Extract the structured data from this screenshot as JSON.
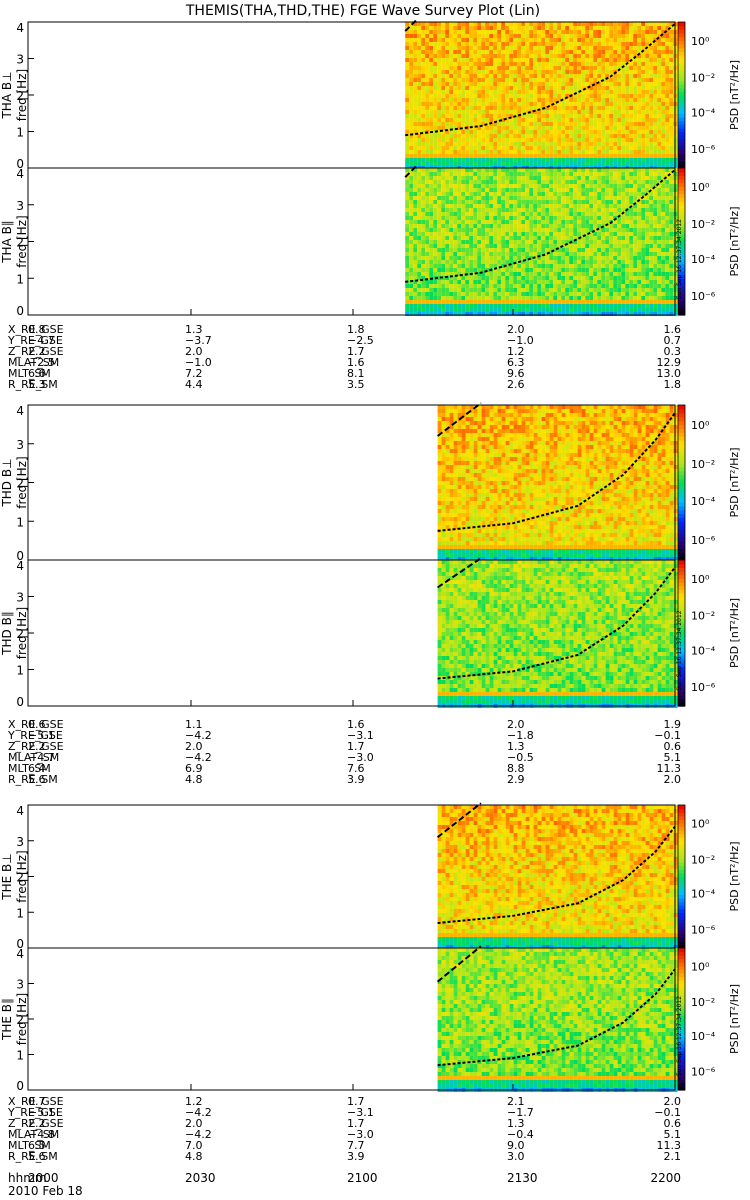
{
  "title": "THEMIS(THA,THD,THE) FGE Wave Survey Plot (Lin)",
  "colorbar_label": "PSD [nT²/Hz]",
  "colorbar_ticks": [
    "10⁰",
    "10⁻²",
    "10⁻⁴",
    "10⁻⁶"
  ],
  "timestamp_stamp": "Sun Sep 16 12:37:34 2012",
  "x_axis_row_label": "hhmm",
  "date_label": "2010 Feb 18",
  "chart_data": {
    "type": "heatmap",
    "x_label": "hhmm",
    "x_ticks": [
      "2000",
      "2030",
      "2100",
      "2130",
      "2200"
    ],
    "colorbar": {
      "label": "PSD [nT²/Hz]",
      "scale": "log",
      "range": [
        1e-07,
        10
      ],
      "ticks": [
        "10⁰",
        "10⁻²",
        "10⁻⁴",
        "10⁻⁶"
      ]
    },
    "panels": [
      {
        "probe": "THA",
        "component": "B⊥",
        "ylabel": "THA B⊥",
        "yunit": "freq [Hz]",
        "ylim": [
          0,
          4
        ],
        "yticks": [
          "0",
          "1",
          "2",
          "3",
          "4"
        ],
        "data_start_frac": 0.583,
        "gyro_curve": [
          [
            0.583,
            0.9
          ],
          [
            0.7,
            1.15
          ],
          [
            0.8,
            1.65
          ],
          [
            0.9,
            2.5
          ],
          [
            0.95,
            3.2
          ],
          [
            1.0,
            3.95
          ]
        ],
        "upper_curve": [
          [
            0.583,
            3.75
          ],
          [
            0.6,
            4.05
          ]
        ]
      },
      {
        "probe": "THA",
        "component": "B∥",
        "ylabel": "THA B∥",
        "yunit": "freq [Hz]",
        "ylim": [
          0,
          4
        ],
        "yticks": [
          "0",
          "1",
          "2",
          "3",
          "4"
        ],
        "data_start_frac": 0.583,
        "gyro_curve": [
          [
            0.583,
            0.9
          ],
          [
            0.7,
            1.15
          ],
          [
            0.8,
            1.65
          ],
          [
            0.9,
            2.5
          ],
          [
            0.95,
            3.2
          ],
          [
            1.0,
            3.95
          ]
        ],
        "upper_curve": [
          [
            0.583,
            3.75
          ],
          [
            0.6,
            4.05
          ]
        ]
      },
      {
        "probe": "THD",
        "component": "B⊥",
        "ylabel": "THD B⊥",
        "yunit": "freq [Hz]",
        "ylim": [
          0,
          4
        ],
        "yticks": [
          "0",
          "1",
          "2",
          "3",
          "4"
        ],
        "data_start_frac": 0.633,
        "gyro_curve": [
          [
            0.633,
            0.75
          ],
          [
            0.75,
            0.95
          ],
          [
            0.85,
            1.4
          ],
          [
            0.92,
            2.2
          ],
          [
            0.97,
            3.1
          ],
          [
            1.0,
            3.8
          ]
        ],
        "upper_curve": [
          [
            0.633,
            3.2
          ],
          [
            0.7,
            4.05
          ]
        ]
      },
      {
        "probe": "THD",
        "component": "B∥",
        "ylabel": "THD B∥",
        "yunit": "freq [Hz]",
        "ylim": [
          0,
          4
        ],
        "yticks": [
          "0",
          "1",
          "2",
          "3",
          "4"
        ],
        "data_start_frac": 0.633,
        "gyro_curve": [
          [
            0.633,
            0.75
          ],
          [
            0.75,
            0.95
          ],
          [
            0.85,
            1.4
          ],
          [
            0.92,
            2.2
          ],
          [
            0.97,
            3.1
          ],
          [
            1.0,
            3.8
          ]
        ],
        "upper_curve": [
          [
            0.633,
            3.25
          ],
          [
            0.7,
            4.05
          ]
        ]
      },
      {
        "probe": "THE",
        "component": "B⊥",
        "ylabel": "THE B⊥",
        "yunit": "freq [Hz]",
        "ylim": [
          0,
          4
        ],
        "yticks": [
          "0",
          "1",
          "2",
          "3",
          "4"
        ],
        "data_start_frac": 0.633,
        "gyro_curve": [
          [
            0.633,
            0.7
          ],
          [
            0.75,
            0.9
          ],
          [
            0.85,
            1.25
          ],
          [
            0.92,
            1.9
          ],
          [
            0.97,
            2.7
          ],
          [
            1.0,
            3.4
          ]
        ],
        "upper_curve": [
          [
            0.633,
            3.1
          ],
          [
            0.7,
            4.05
          ]
        ]
      },
      {
        "probe": "THE",
        "component": "B∥",
        "ylabel": "THE B∥",
        "yunit": "freq [Hz]",
        "ylim": [
          0,
          4
        ],
        "yticks": [
          "0",
          "1",
          "2",
          "3",
          "4"
        ],
        "data_start_frac": 0.633,
        "gyro_curve": [
          [
            0.633,
            0.7
          ],
          [
            0.75,
            0.9
          ],
          [
            0.85,
            1.25
          ],
          [
            0.92,
            1.9
          ],
          [
            0.97,
            2.7
          ],
          [
            1.0,
            3.4
          ]
        ],
        "upper_curve": [
          [
            0.633,
            3.05
          ],
          [
            0.7,
            4.05
          ]
        ]
      }
    ],
    "ephemeris": [
      {
        "probe": "THA",
        "rows": [
          {
            "label": "X_RE_GSE",
            "values": [
              "0.8",
              "1.3",
              "1.8",
              "2.0",
              "1.6"
            ]
          },
          {
            "label": "Y_RE_GSE",
            "values": [
              "−4.7",
              "−3.7",
              "−2.5",
              "−1.0",
              "0.7"
            ]
          },
          {
            "label": "Z_RE_GSE",
            "values": [
              "2.2",
              "2.0",
              "1.7",
              "1.2",
              "0.3"
            ]
          },
          {
            "label": "MLAT_SM",
            "values": [
              "−2.5",
              "−1.0",
              "1.6",
              "6.3",
              "12.9"
            ]
          },
          {
            "label": "MLT_SM",
            "values": [
              "6.6",
              "7.2",
              "8.1",
              "9.6",
              "13.0"
            ]
          },
          {
            "label": "R_RE_SM",
            "values": [
              "5.3",
              "4.4",
              "3.5",
              "2.6",
              "1.8"
            ]
          }
        ]
      },
      {
        "probe": "THD",
        "rows": [
          {
            "label": "X_RE_GSE",
            "values": [
              "0.6",
              "1.1",
              "1.6",
              "2.0",
              "1.9"
            ]
          },
          {
            "label": "Y_RE_GSE",
            "values": [
              "−5.1",
              "−4.2",
              "−3.1",
              "−1.8",
              "−0.1"
            ]
          },
          {
            "label": "Z_RE_GSE",
            "values": [
              "2.2",
              "2.0",
              "1.7",
              "1.3",
              "0.6"
            ]
          },
          {
            "label": "MLAT_SM",
            "values": [
              "−4.7",
              "−4.2",
              "−3.0",
              "−0.5",
              "5.1"
            ]
          },
          {
            "label": "MLT_SM",
            "values": [
              "6.4",
              "6.9",
              "7.6",
              "8.8",
              "11.3"
            ]
          },
          {
            "label": "R_RE_SM",
            "values": [
              "5.6",
              "4.8",
              "3.9",
              "2.9",
              "2.0"
            ]
          }
        ]
      },
      {
        "probe": "THE",
        "rows": [
          {
            "label": "X_RE_GSE",
            "values": [
              "0.7",
              "1.2",
              "1.7",
              "2.1",
              "2.0"
            ]
          },
          {
            "label": "Y_RE_GSE",
            "values": [
              "−5.1",
              "−4.2",
              "−3.1",
              "−1.7",
              "−0.1"
            ]
          },
          {
            "label": "Z_RE_GSE",
            "values": [
              "2.2",
              "2.0",
              "1.7",
              "1.3",
              "0.6"
            ]
          },
          {
            "label": "MLAT_SM",
            "values": [
              "−4.8",
              "−4.2",
              "−3.0",
              "−0.4",
              "5.1"
            ]
          },
          {
            "label": "MLT_SM",
            "values": [
              "6.5",
              "7.0",
              "7.7",
              "9.0",
              "11.3"
            ]
          },
          {
            "label": "R_RE_SM",
            "values": [
              "5.6",
              "4.8",
              "3.9",
              "3.0",
              "2.1"
            ]
          }
        ]
      }
    ]
  }
}
